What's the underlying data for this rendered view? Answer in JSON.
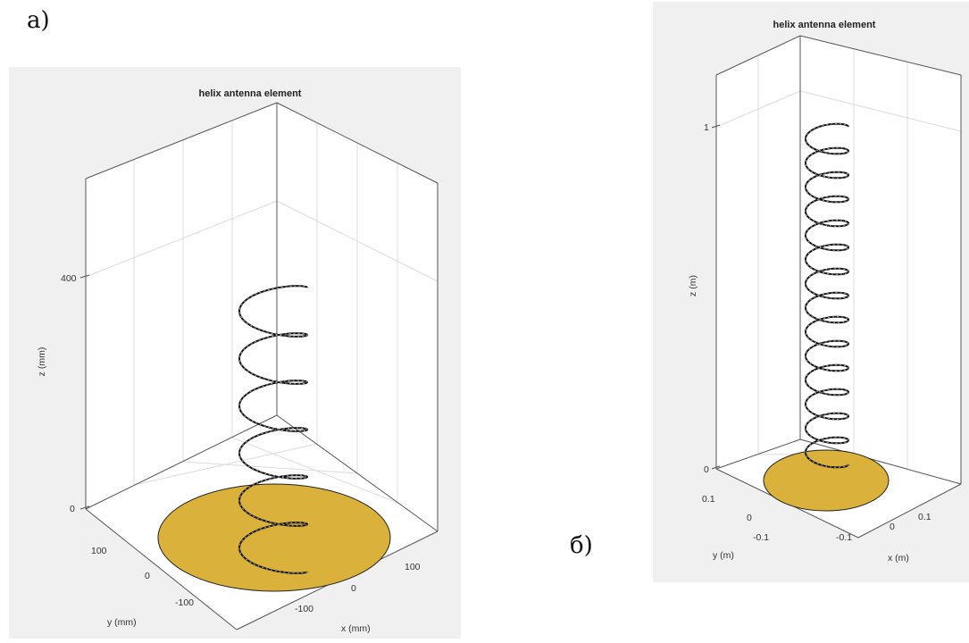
{
  "panel_labels": {
    "a": "a)",
    "b": "б)"
  },
  "colors": {
    "ground_plane": "#d9b13b",
    "figure_background": "#f0f0f0",
    "axes_background": "#ffffff"
  },
  "figures": [
    {
      "title": "helix antenna element",
      "turns": 6,
      "z_label": "z (mm)",
      "y_label": "y (mm)",
      "x_label": "x (mm)",
      "z_ticks": [
        "400",
        "0"
      ],
      "y_ticks": [
        "100",
        "0",
        "-100"
      ],
      "x_ticks": [
        "100",
        "0",
        "-100"
      ]
    },
    {
      "title": "helix antenna element",
      "turns": 14,
      "z_label": "z (m)",
      "y_label": "y (m)",
      "x_label": "x (m)",
      "z_ticks": [
        "1",
        "0"
      ],
      "y_ticks": [
        "0.1",
        "0",
        "-0.1"
      ],
      "x_ticks": [
        "0.1",
        "0",
        "-0.1"
      ]
    }
  ]
}
